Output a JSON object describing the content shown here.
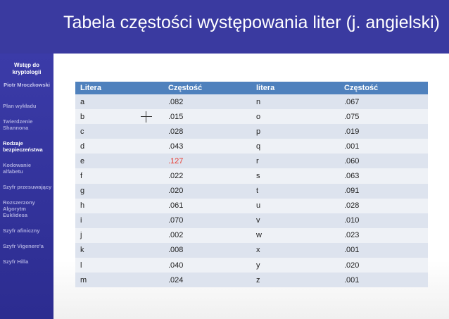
{
  "slide": {
    "title": "Tabela częstości występowania liter (j. angielski)"
  },
  "sidebar": {
    "heading": "Wstęp do kryptologii",
    "author": "Piotr Mroczkowski",
    "items": [
      {
        "label": "Plan wykładu",
        "active": false
      },
      {
        "label": "Twierdzenie Shannona",
        "active": false
      },
      {
        "label": "Rodzaje bezpieczeństwa",
        "active": true
      },
      {
        "label": "Kodowanie alfabetu",
        "active": false
      },
      {
        "label": "Szyfr przesuwający",
        "active": false
      },
      {
        "label": "Rozszerzony Algorytm Euklidesa",
        "active": false
      },
      {
        "label": "Szyfr afiniczny",
        "active": false
      },
      {
        "label": "Szyfr Vigenere'a",
        "active": false
      },
      {
        "label": "Szyfr Hilla",
        "active": false
      }
    ]
  },
  "table": {
    "headers": [
      "Litera",
      "Częstość",
      "litera",
      "Częstość"
    ],
    "highlight_color": "#e83a2e",
    "rows": [
      [
        "a",
        ".082",
        "n",
        ".067"
      ],
      [
        "b",
        ".015",
        "o",
        ".075"
      ],
      [
        "c",
        ".028",
        "p",
        ".019"
      ],
      [
        "d",
        ".043",
        "q",
        ".001"
      ],
      [
        "e",
        ".127",
        "r",
        ".060"
      ],
      [
        "f",
        ".022",
        "s",
        ".063"
      ],
      [
        "g",
        ".020",
        "t",
        ".091"
      ],
      [
        "h",
        ".061",
        "u",
        ".028"
      ],
      [
        "i",
        ".070",
        "v",
        ".010"
      ],
      [
        "j",
        ".002",
        "w",
        ".023"
      ],
      [
        "k",
        ".008",
        "x",
        ".001"
      ],
      [
        "l",
        ".040",
        "y",
        ".020"
      ],
      [
        "m",
        ".024",
        "z",
        ".001"
      ]
    ]
  },
  "cursor": {
    "icon": "crosshair-cursor-icon"
  }
}
